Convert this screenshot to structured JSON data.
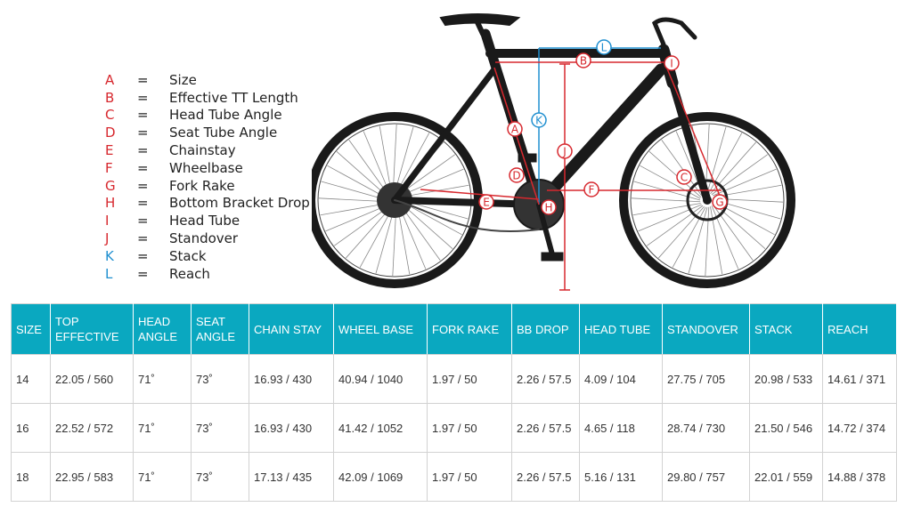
{
  "legend": [
    {
      "letter": "A",
      "label": "Size",
      "color": "#d7282e"
    },
    {
      "letter": "B",
      "label": "Effective TT Length",
      "color": "#d7282e"
    },
    {
      "letter": "C",
      "label": "Head Tube Angle",
      "color": "#d7282e"
    },
    {
      "letter": "D",
      "label": "Seat Tube Angle",
      "color": "#d7282e"
    },
    {
      "letter": "E",
      "label": "Chainstay",
      "color": "#d7282e"
    },
    {
      "letter": "F",
      "label": "Wheelbase",
      "color": "#d7282e"
    },
    {
      "letter": "G",
      "label": "Fork Rake",
      "color": "#d7282e"
    },
    {
      "letter": "H",
      "label": "Bottom Bracket Drop",
      "color": "#d7282e"
    },
    {
      "letter": "I",
      "label": "Head Tube",
      "color": "#d7282e"
    },
    {
      "letter": "J",
      "label": "Standover",
      "color": "#d7282e"
    },
    {
      "letter": "K",
      "label": "Stack",
      "color": "#1f8fd0"
    },
    {
      "letter": "L",
      "label": "Reach",
      "color": "#1f8fd0"
    }
  ],
  "legend_separator": "=",
  "diagram_markers": [
    "A",
    "B",
    "C",
    "D",
    "E",
    "F",
    "G",
    "H",
    "I",
    "J",
    "K",
    "L"
  ],
  "colors": {
    "header_bg": "#0aa8c0",
    "marker_red": "#d7282e",
    "marker_blue": "#1f8fd0",
    "bike": "#1a1a1a"
  },
  "table": {
    "headers": [
      "SIZE",
      "TOP EFFECTIVE",
      "HEAD ANGLE",
      "SEAT ANGLE",
      "CHAIN STAY",
      "WHEEL BASE",
      "FORK RAKE",
      "BB DROP",
      "HEAD TUBE",
      "STANDOVER",
      "STACK",
      "REACH"
    ],
    "rows": [
      [
        "14",
        "22.05 / 560",
        "71˚",
        "73˚",
        "16.93 / 430",
        "40.94 / 1040",
        "1.97 / 50",
        "2.26 / 57.5",
        "4.09 / 104",
        "27.75 / 705",
        "20.98 / 533",
        "14.61 / 371"
      ],
      [
        "16",
        "22.52 / 572",
        "71˚",
        "73˚",
        "16.93 / 430",
        "41.42 / 1052",
        "1.97 / 50",
        "2.26 / 57.5",
        "4.65 / 118",
        "28.74 / 730",
        "21.50 / 546",
        "14.72 / 374"
      ],
      [
        "18",
        "22.95 / 583",
        "71˚",
        "73˚",
        "17.13 / 435",
        "42.09 / 1069",
        "1.97 / 50",
        "2.26 / 57.5",
        "5.16 / 131",
        "29.80 / 757",
        "22.01 / 559",
        "14.88 / 378"
      ]
    ]
  }
}
